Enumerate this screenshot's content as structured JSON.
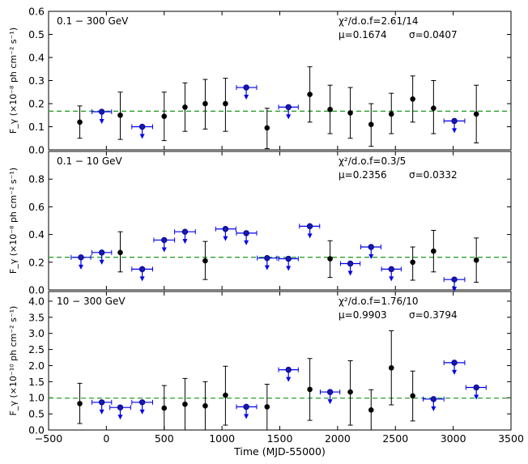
{
  "chart_data": [
    {
      "type": "scatter",
      "band_label": "0.1 − 300 GeV",
      "ylabel": "F_γ (×10⁻⁸ ph cm⁻² s⁻¹)",
      "ylim": [
        0.0,
        0.6
      ],
      "yticks": [
        "0.0",
        "0.1",
        "0.2",
        "0.3",
        "0.4",
        "0.5",
        "0.6"
      ],
      "stats": {
        "chi2": "χ²/d.o.f=2.61/14",
        "mu": "μ=0.1674",
        "sigma": "σ=0.0407"
      },
      "mean": 0.1674,
      "mean_color": "#2ca02c",
      "detections": [
        {
          "x": -230,
          "y": 0.12,
          "lo": 0.05,
          "hi": 0.19
        },
        {
          "x": 120,
          "y": 0.15,
          "lo": 0.045,
          "hi": 0.25
        },
        {
          "x": 500,
          "y": 0.145,
          "lo": 0.04,
          "hi": 0.25
        },
        {
          "x": 680,
          "y": 0.185,
          "lo": 0.08,
          "hi": 0.29
        },
        {
          "x": 855,
          "y": 0.2,
          "lo": 0.09,
          "hi": 0.305
        },
        {
          "x": 1030,
          "y": 0.2,
          "lo": 0.08,
          "hi": 0.31
        },
        {
          "x": 1390,
          "y": 0.095,
          "lo": 0.005,
          "hi": 0.18
        },
        {
          "x": 1760,
          "y": 0.24,
          "lo": 0.12,
          "hi": 0.36
        },
        {
          "x": 1935,
          "y": 0.175,
          "lo": 0.07,
          "hi": 0.28
        },
        {
          "x": 2110,
          "y": 0.16,
          "lo": 0.05,
          "hi": 0.27
        },
        {
          "x": 2290,
          "y": 0.11,
          "lo": 0.015,
          "hi": 0.2
        },
        {
          "x": 2465,
          "y": 0.155,
          "lo": 0.07,
          "hi": 0.245
        },
        {
          "x": 2650,
          "y": 0.22,
          "lo": 0.12,
          "hi": 0.32
        },
        {
          "x": 2830,
          "y": 0.18,
          "lo": 0.07,
          "hi": 0.3
        },
        {
          "x": 3200,
          "y": 0.155,
          "lo": 0.03,
          "hi": 0.28
        }
      ],
      "upper_limits": [
        {
          "x": -40,
          "y": 0.165,
          "xlo": -125,
          "xhi": 45
        },
        {
          "x": 310,
          "y": 0.1,
          "xlo": 220,
          "xhi": 400
        },
        {
          "x": 1210,
          "y": 0.27,
          "xlo": 1125,
          "xhi": 1300
        },
        {
          "x": 1575,
          "y": 0.185,
          "xlo": 1490,
          "xhi": 1660
        },
        {
          "x": 3010,
          "y": 0.125,
          "xlo": 2920,
          "xhi": 3100
        }
      ]
    },
    {
      "type": "scatter",
      "band_label": "0.1 − 10 GeV",
      "ylabel": "F_γ (×10⁻⁸ ph cm⁻² s⁻¹)",
      "ylim": [
        0.0,
        1.0
      ],
      "yticks": [
        "0.0",
        "0.2",
        "0.4",
        "0.6",
        "0.8"
      ],
      "stats": {
        "chi2": "χ²/d.o.f=0.3/5",
        "mu": "μ=0.2356",
        "sigma": "σ=0.0332"
      },
      "mean": 0.2356,
      "mean_color": "#2ca02c",
      "detections": [
        {
          "x": 120,
          "y": 0.27,
          "lo": 0.13,
          "hi": 0.42
        },
        {
          "x": 855,
          "y": 0.21,
          "lo": 0.075,
          "hi": 0.35
        },
        {
          "x": 1935,
          "y": 0.225,
          "lo": 0.09,
          "hi": 0.355
        },
        {
          "x": 2650,
          "y": 0.2,
          "lo": 0.07,
          "hi": 0.31
        },
        {
          "x": 2830,
          "y": 0.28,
          "lo": 0.13,
          "hi": 0.43
        },
        {
          "x": 3200,
          "y": 0.215,
          "lo": 0.055,
          "hi": 0.375
        }
      ],
      "upper_limits": [
        {
          "x": -220,
          "y": 0.235,
          "xlo": -305,
          "xhi": -135
        },
        {
          "x": -40,
          "y": 0.27,
          "xlo": -125,
          "xhi": 45
        },
        {
          "x": 310,
          "y": 0.15,
          "xlo": 220,
          "xhi": 400
        },
        {
          "x": 500,
          "y": 0.36,
          "xlo": 410,
          "xhi": 590
        },
        {
          "x": 680,
          "y": 0.42,
          "xlo": 590,
          "xhi": 770
        },
        {
          "x": 1030,
          "y": 0.44,
          "xlo": 945,
          "xhi": 1120
        },
        {
          "x": 1210,
          "y": 0.41,
          "xlo": 1125,
          "xhi": 1300
        },
        {
          "x": 1390,
          "y": 0.23,
          "xlo": 1305,
          "xhi": 1475
        },
        {
          "x": 1575,
          "y": 0.225,
          "xlo": 1490,
          "xhi": 1660
        },
        {
          "x": 1760,
          "y": 0.46,
          "xlo": 1670,
          "xhi": 1845
        },
        {
          "x": 2110,
          "y": 0.19,
          "xlo": 2025,
          "xhi": 2195
        },
        {
          "x": 2290,
          "y": 0.31,
          "xlo": 2200,
          "xhi": 2375
        },
        {
          "x": 2465,
          "y": 0.15,
          "xlo": 2380,
          "xhi": 2550
        },
        {
          "x": 3010,
          "y": 0.075,
          "xlo": 2920,
          "xhi": 3100
        }
      ]
    },
    {
      "type": "scatter",
      "band_label": "10 − 300 GeV",
      "ylabel": "F_γ (×10⁻¹⁰ ph cm⁻² s⁻¹)",
      "ylim": [
        0.0,
        4.3
      ],
      "yticks": [
        "0.0",
        "0.5",
        "1.0",
        "1.5",
        "2.0",
        "2.5",
        "3.0",
        "3.5",
        "4.0"
      ],
      "stats": {
        "chi2": "χ²/d.o.f=1.76/10",
        "mu": "μ=0.9903",
        "sigma": "σ=0.3794"
      },
      "mean": 0.9903,
      "mean_color": "#2ca02c",
      "detections": [
        {
          "x": -230,
          "y": 0.82,
          "lo": 0.2,
          "hi": 1.45
        },
        {
          "x": 500,
          "y": 0.68,
          "lo": 0.0,
          "hi": 1.38
        },
        {
          "x": 680,
          "y": 0.8,
          "lo": 0.0,
          "hi": 1.6
        },
        {
          "x": 855,
          "y": 0.75,
          "lo": 0.0,
          "hi": 1.5
        },
        {
          "x": 1030,
          "y": 1.08,
          "lo": 0.15,
          "hi": 1.98
        },
        {
          "x": 1390,
          "y": 0.72,
          "lo": 0.0,
          "hi": 1.42
        },
        {
          "x": 1760,
          "y": 1.26,
          "lo": 0.3,
          "hi": 2.22
        },
        {
          "x": 2110,
          "y": 1.18,
          "lo": 0.15,
          "hi": 2.15
        },
        {
          "x": 2290,
          "y": 0.62,
          "lo": 0.0,
          "hi": 1.25
        },
        {
          "x": 2465,
          "y": 1.93,
          "lo": 0.78,
          "hi": 3.08
        },
        {
          "x": 2650,
          "y": 1.06,
          "lo": 0.28,
          "hi": 1.83
        }
      ],
      "upper_limits": [
        {
          "x": -40,
          "y": 0.86,
          "xlo": -125,
          "xhi": 45
        },
        {
          "x": 120,
          "y": 0.7,
          "xlo": 30,
          "xhi": 210
        },
        {
          "x": 310,
          "y": 0.86,
          "xlo": 220,
          "xhi": 400
        },
        {
          "x": 1210,
          "y": 0.72,
          "xlo": 1125,
          "xhi": 1300
        },
        {
          "x": 1575,
          "y": 1.87,
          "xlo": 1490,
          "xhi": 1660
        },
        {
          "x": 1935,
          "y": 1.18,
          "xlo": 1850,
          "xhi": 2020
        },
        {
          "x": 2830,
          "y": 0.96,
          "xlo": 2740,
          "xhi": 2920
        },
        {
          "x": 3010,
          "y": 2.09,
          "xlo": 2920,
          "xhi": 3100
        },
        {
          "x": 3200,
          "y": 1.32,
          "xlo": 3110,
          "xhi": 3285
        }
      ]
    }
  ],
  "x_axis": {
    "label": "Time (MJD-55000)",
    "xlim": [
      -500,
      3500
    ],
    "ticks": [
      "−500",
      "0",
      "500",
      "1000",
      "1500",
      "2000",
      "2500",
      "3000",
      "3500"
    ]
  }
}
